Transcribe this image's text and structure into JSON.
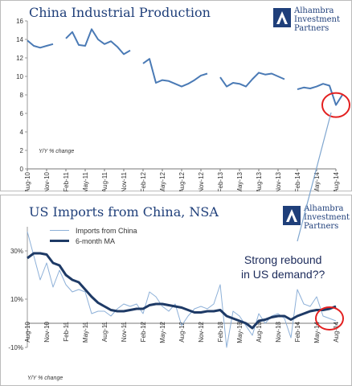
{
  "chart_data": [
    {
      "type": "line",
      "title": "China Industrial Production",
      "ylabel": "Y/Y % change",
      "ylim": [
        0,
        16
      ],
      "yticks": [
        0,
        2,
        4,
        6,
        8,
        10,
        12,
        14,
        16
      ],
      "x_index_range": [
        0,
        48
      ],
      "xtick_labels": [
        {
          "i": 0,
          "label": "Aug-10"
        },
        {
          "i": 3,
          "label": "Nov-10"
        },
        {
          "i": 6,
          "label": "Feb-11"
        },
        {
          "i": 9,
          "label": "May-11"
        },
        {
          "i": 12,
          "label": "Aug-11"
        },
        {
          "i": 15,
          "label": "Nov-11"
        },
        {
          "i": 18,
          "label": "Feb-12"
        },
        {
          "i": 21,
          "label": "May-12"
        },
        {
          "i": 24,
          "label": "Aug-12"
        },
        {
          "i": 27,
          "label": "Nov-12"
        },
        {
          "i": 30,
          "label": "Feb-13"
        },
        {
          "i": 33,
          "label": "May-13"
        },
        {
          "i": 36,
          "label": "Aug-13"
        },
        {
          "i": 39,
          "label": "Nov-13"
        },
        {
          "i": 42,
          "label": "Feb-14"
        },
        {
          "i": 45,
          "label": "May-14"
        },
        {
          "i": 48,
          "label": "Aug-14"
        }
      ],
      "series": [
        {
          "name": "",
          "color": "#4a7ab5",
          "segments": [
            {
              "start": 0,
              "values": [
                13.9,
                13.3,
                13.1,
                13.3,
                13.5
              ]
            },
            {
              "start": 6,
              "values": [
                14.1,
                14.8,
                13.4,
                13.3,
                15.1,
                14.0,
                13.5,
                13.8,
                13.2,
                12.4,
                12.8
              ]
            },
            {
              "start": 18,
              "values": [
                11.4,
                11.9,
                9.3,
                9.6,
                9.5,
                9.2,
                8.9,
                9.2,
                9.6,
                10.1,
                10.3
              ]
            },
            {
              "start": 30,
              "values": [
                9.9,
                8.9,
                9.3,
                9.2,
                8.9,
                9.7,
                10.4,
                10.2,
                10.3,
                10.0,
                9.7
              ]
            },
            {
              "start": 42,
              "values": [
                8.6,
                8.8,
                8.7,
                8.9,
                9.2,
                9.0,
                6.9,
                8.0
              ]
            }
          ]
        }
      ],
      "highlight": {
        "i": 48,
        "value": 6.9,
        "color": "#e32020"
      }
    },
    {
      "type": "line",
      "title": "US Imports from China, NSA",
      "ylabel": "Y/Y % change",
      "ylim": [
        -10,
        40
      ],
      "ytick_labels": [
        {
          "v": 30,
          "label": "30%"
        },
        {
          "v": 10,
          "label": "10%"
        },
        {
          "v": -10,
          "label": "-10%"
        }
      ],
      "x_index_range": [
        0,
        48
      ],
      "xtick_labels": [
        {
          "i": 0,
          "label": "Aug-10"
        },
        {
          "i": 3,
          "label": "Nov-10"
        },
        {
          "i": 6,
          "label": "Feb-11"
        },
        {
          "i": 9,
          "label": "May-11"
        },
        {
          "i": 12,
          "label": "Aug-11"
        },
        {
          "i": 15,
          "label": "Nov-11"
        },
        {
          "i": 18,
          "label": "Feb-12"
        },
        {
          "i": 21,
          "label": "May-12"
        },
        {
          "i": 24,
          "label": "Aug-12"
        },
        {
          "i": 27,
          "label": "Nov-12"
        },
        {
          "i": 30,
          "label": "Feb-13"
        },
        {
          "i": 33,
          "label": "May-13"
        },
        {
          "i": 36,
          "label": "Aug-13"
        },
        {
          "i": 39,
          "label": "Nov-13"
        },
        {
          "i": 42,
          "label": "Feb-14"
        },
        {
          "i": 45,
          "label": "May-14"
        },
        {
          "i": 48,
          "label": "Aug-14"
        }
      ],
      "series": [
        {
          "name": "Imports from China",
          "color": "#8db0d8",
          "width": 1,
          "values": [
            38,
            28,
            18,
            25,
            15,
            22,
            16,
            13,
            14,
            13,
            4,
            5,
            5,
            3,
            6,
            8,
            7,
            8,
            4,
            13,
            11,
            7,
            5,
            8,
            -1,
            3,
            6,
            7,
            6,
            8,
            16,
            -10,
            5,
            3,
            -1,
            -5,
            4,
            0,
            3,
            4,
            2,
            -6,
            14,
            8,
            7,
            11,
            3,
            2,
            1
          ]
        },
        {
          "name": "6-month MA",
          "color": "#1e3a66",
          "width": 3,
          "values": [
            27,
            29,
            29,
            28.5,
            25,
            24,
            20,
            18,
            17,
            14,
            11,
            8.5,
            7,
            5.5,
            5,
            5,
            5.5,
            6,
            6,
            7.5,
            8,
            8,
            7.5,
            7,
            6.5,
            5.5,
            4.5,
            4.5,
            5,
            5,
            5.5,
            3,
            2,
            1,
            0,
            -2,
            1,
            1.5,
            2.5,
            3,
            3,
            1.5,
            3,
            4,
            5,
            5.5,
            5.5,
            6,
            7
          ]
        }
      ],
      "highlight": {
        "i": 47,
        "value": 2,
        "color": "#e32020"
      },
      "callout": {
        "line1": "Strong rebound",
        "line2": "in US demand??"
      }
    }
  ],
  "logo": {
    "line1": "Alhambra",
    "line2": "Investment",
    "line3": "Partners"
  }
}
